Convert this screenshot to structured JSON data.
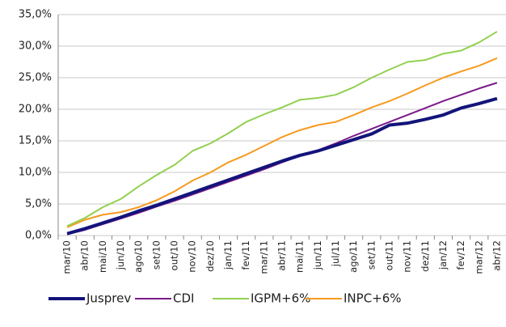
{
  "chart_data": {
    "type": "line",
    "categories": [
      "mar/10",
      "abr/10",
      "mai/10",
      "jun/10",
      "ago/10",
      "set/10",
      "out/10",
      "nov/10",
      "dez/10",
      "jan/11",
      "fev/11",
      "mar/11",
      "abr/11",
      "mai/11",
      "jun/11",
      "jul/11",
      "ago/11",
      "set/11",
      "out/11",
      "nov/11",
      "dez/11",
      "jan/12",
      "fev/12",
      "mar/12",
      "abr/12"
    ],
    "series": [
      {
        "name": "Jusprev",
        "color": "#13147a",
        "values": [
          0.3,
          1.1,
          2.0,
          2.9,
          3.9,
          4.8,
          5.8,
          6.8,
          7.8,
          8.8,
          9.8,
          10.8,
          11.8,
          12.7,
          13.4,
          14.3,
          15.2,
          16.1,
          17.5,
          17.8,
          18.4,
          19.1,
          20.2,
          20.9,
          21.7
        ]
      },
      {
        "name": "CDI",
        "color": "#7b1a8a",
        "values": [
          0.2,
          0.9,
          1.8,
          2.7,
          3.6,
          4.6,
          5.5,
          6.5,
          7.5,
          8.5,
          9.5,
          10.5,
          11.6,
          12.6,
          13.5,
          14.6,
          15.8,
          16.9,
          18.0,
          19.1,
          20.2,
          21.3,
          22.3,
          23.3,
          24.2
        ]
      },
      {
        "name": "IGPM+6%",
        "color": "#92d050",
        "values": [
          1.5,
          2.8,
          4.5,
          5.8,
          7.8,
          9.6,
          11.2,
          13.4,
          14.6,
          16.2,
          18.0,
          19.2,
          20.3,
          21.5,
          21.8,
          22.3,
          23.5,
          25.0,
          26.3,
          27.5,
          27.8,
          28.8,
          29.3,
          30.6,
          32.3
        ]
      },
      {
        "name": "INPC+6%",
        "color": "#f79a1f",
        "values": [
          1.3,
          2.5,
          3.3,
          3.7,
          4.5,
          5.6,
          7.0,
          8.7,
          10.0,
          11.6,
          12.8,
          14.2,
          15.6,
          16.7,
          17.5,
          18.0,
          19.1,
          20.3,
          21.3,
          22.5,
          23.8,
          25.0,
          26.0,
          26.9,
          28.1
        ]
      }
    ],
    "ylim": [
      0,
      35
    ],
    "yticks": [
      {
        "value": 0,
        "label": "0,0%"
      },
      {
        "value": 5,
        "label": "5,0%"
      },
      {
        "value": 10,
        "label": "10,0%"
      },
      {
        "value": 15,
        "label": "15,0%"
      },
      {
        "value": 20,
        "label": "20,0%"
      },
      {
        "value": 25,
        "label": "25,0%"
      },
      {
        "value": 30,
        "label": "30,0%"
      },
      {
        "value": 35,
        "label": "35,0%"
      }
    ],
    "grid": true
  }
}
